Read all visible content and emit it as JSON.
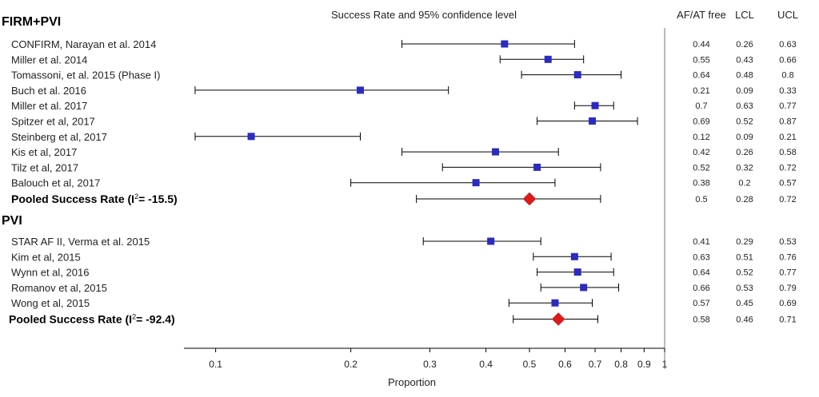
{
  "chart_data": {
    "type": "forest",
    "title": "Success Rate and 95% confidence level",
    "xlabel": "Proportion",
    "xscale": "log",
    "xlim": [
      0.085,
      1
    ],
    "xticks": [
      0.1,
      0.2,
      0.3,
      0.4,
      0.5,
      0.6,
      0.7,
      0.8,
      0.9,
      1
    ],
    "xtick_labels": [
      "0.1",
      "0.2",
      "0.3",
      "0.4",
      "0.5",
      "0.6",
      "0.7",
      "0.8",
      "0.9",
      "1"
    ],
    "columns": [
      "AF/AT free",
      "LCL",
      "UCL"
    ],
    "groups": [
      {
        "name": "FIRM+PVI",
        "studies": [
          {
            "label": "CONFIRM, Narayan et al. 2014",
            "est": 0.44,
            "lcl": 0.26,
            "ucl": 0.63
          },
          {
            "label": "Miller et al. 2014",
            "est": 0.55,
            "lcl": 0.43,
            "ucl": 0.66
          },
          {
            "label": "Tomassoni, et al. 2015 (Phase I)",
            "est": 0.64,
            "lcl": 0.48,
            "ucl": 0.8
          },
          {
            "label": "Buch et al. 2016",
            "est": 0.21,
            "lcl": 0.09,
            "ucl": 0.33
          },
          {
            "label": "Miller et al. 2017",
            "est": 0.7,
            "lcl": 0.63,
            "ucl": 0.77
          },
          {
            "label": "Spitzer et al, 2017",
            "est": 0.69,
            "lcl": 0.52,
            "ucl": 0.87
          },
          {
            "label": "Steinberg et al, 2017",
            "est": 0.12,
            "lcl": 0.09,
            "ucl": 0.21
          },
          {
            "label": "Kis et al, 2017",
            "est": 0.42,
            "lcl": 0.26,
            "ucl": 0.58
          },
          {
            "label": "Tilz et al, 2017",
            "est": 0.52,
            "lcl": 0.32,
            "ucl": 0.72
          },
          {
            "label": "Balouch et al, 2017",
            "est": 0.38,
            "lcl": 0.2,
            "ucl": 0.57
          }
        ],
        "pooled": {
          "label": "Pooled Success Rate (I",
          "sup": "2",
          "i2": "= -15.5)",
          "est": 0.5,
          "lcl": 0.28,
          "ucl": 0.72
        }
      },
      {
        "name": "PVI",
        "studies": [
          {
            "label": "STAR AF II, Verma et al. 2015",
            "est": 0.41,
            "lcl": 0.29,
            "ucl": 0.53
          },
          {
            "label": "Kim et al, 2015",
            "est": 0.63,
            "lcl": 0.51,
            "ucl": 0.76
          },
          {
            "label": "Wynn et al, 2016",
            "est": 0.64,
            "lcl": 0.52,
            "ucl": 0.77
          },
          {
            "label": "Romanov et al, 2015",
            "est": 0.66,
            "lcl": 0.53,
            "ucl": 0.79
          },
          {
            "label": "Wong et al, 2015",
            "est": 0.57,
            "lcl": 0.45,
            "ucl": 0.69
          }
        ],
        "pooled": {
          "label": "Pooled Success Rate (I",
          "sup": "2",
          "i2": "= -92.4)",
          "est": 0.58,
          "lcl": 0.46,
          "ucl": 0.71
        }
      }
    ],
    "colors": {
      "study_marker": "#2b2bc0",
      "pooled_marker": "#dd1a1a",
      "line": "#000000",
      "divider": "#777777"
    }
  }
}
